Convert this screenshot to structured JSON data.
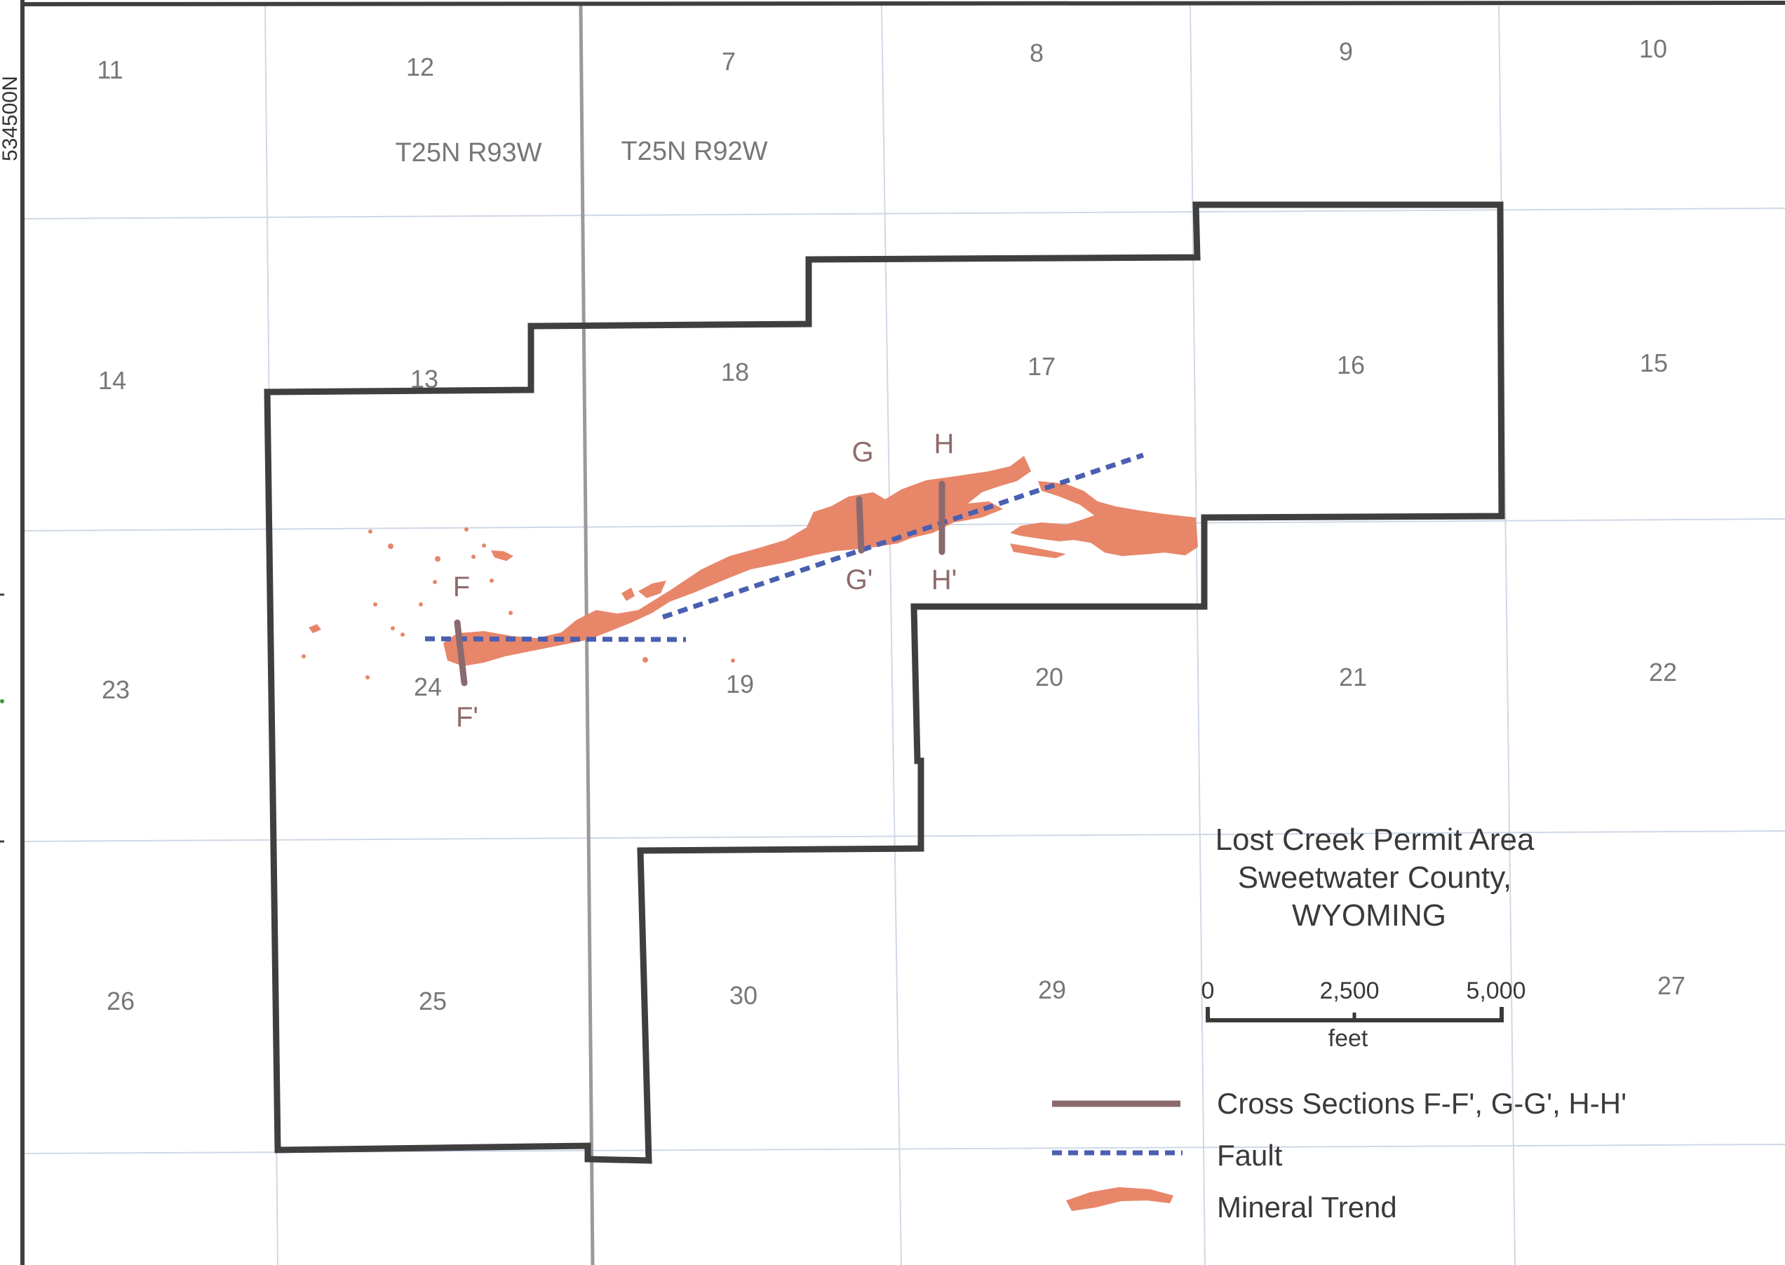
{
  "map": {
    "northing_label": "534500N",
    "township_labels": [
      "T25N R93W",
      "T25N R92W"
    ],
    "sections": [
      {
        "id": "11",
        "label": "11"
      },
      {
        "id": "12",
        "label": "12"
      },
      {
        "id": "7",
        "label": "7"
      },
      {
        "id": "8",
        "label": "8"
      },
      {
        "id": "9",
        "label": "9"
      },
      {
        "id": "10",
        "label": "10"
      },
      {
        "id": "14",
        "label": "14"
      },
      {
        "id": "13",
        "label": "13"
      },
      {
        "id": "18",
        "label": "18"
      },
      {
        "id": "17",
        "label": "17"
      },
      {
        "id": "16",
        "label": "16"
      },
      {
        "id": "15",
        "label": "15"
      },
      {
        "id": "23",
        "label": "23"
      },
      {
        "id": "24",
        "label": "24"
      },
      {
        "id": "19",
        "label": "19"
      },
      {
        "id": "20",
        "label": "20"
      },
      {
        "id": "21",
        "label": "21"
      },
      {
        "id": "22",
        "label": "22"
      },
      {
        "id": "26",
        "label": "26"
      },
      {
        "id": "25",
        "label": "25"
      },
      {
        "id": "30",
        "label": "30"
      },
      {
        "id": "29",
        "label": "29"
      },
      {
        "id": "27",
        "label": "27"
      }
    ],
    "cross_sections": [
      {
        "id": "F",
        "start": "F",
        "end": "F'"
      },
      {
        "id": "G",
        "start": "G",
        "end": "G'"
      },
      {
        "id": "H",
        "start": "H",
        "end": "H'"
      }
    ]
  },
  "title": {
    "line1": "Lost Creek Permit Area",
    "line2": "Sweetwater County,",
    "line3": "WYOMING"
  },
  "scale_bar": {
    "ticks": [
      "0",
      "2,500",
      "5,000"
    ],
    "unit": "feet"
  },
  "legend": {
    "items": [
      {
        "label": "Cross Sections F-F', G-G', H-H'",
        "symbol": "solid-line"
      },
      {
        "label": "Fault",
        "symbol": "dashed-line"
      },
      {
        "label": "Mineral Trend",
        "symbol": "filled-shape"
      }
    ]
  },
  "colors": {
    "boundary": "#3f3f3f",
    "grid": "#cfd8e6",
    "range_line": "#9a9a9a",
    "cross_section": "#8a6a6e",
    "fault": "#4a5fb0",
    "mineral_trend": "#e8866a"
  }
}
